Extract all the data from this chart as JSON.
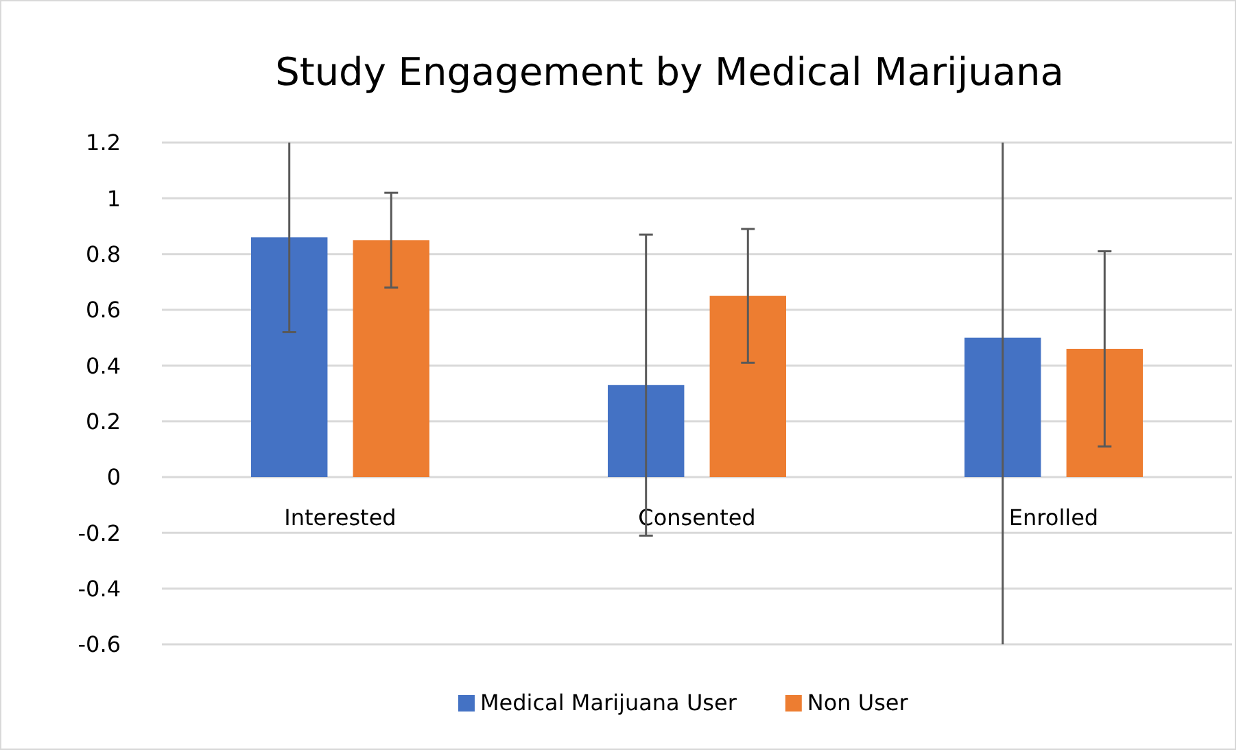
{
  "chart_data": {
    "type": "bar",
    "title": "Study Engagement by Medical Marijuana",
    "categories": [
      "Interested",
      "Consented",
      "Enrolled"
    ],
    "series": [
      {
        "name": "Medical Marijuana User",
        "color": "#4472c4",
        "values": [
          0.86,
          0.33,
          0.5
        ],
        "errors": [
          [
            0.52,
            1.2
          ],
          [
            -0.21,
            0.87
          ],
          [
            -0.6,
            1.2
          ]
        ]
      },
      {
        "name": "Non User",
        "color": "#ed7d31",
        "values": [
          0.85,
          0.65,
          0.46
        ],
        "errors": [
          [
            0.68,
            1.02
          ],
          [
            0.41,
            0.89
          ],
          [
            0.11,
            0.81
          ]
        ]
      }
    ],
    "ylim": [
      -0.6,
      1.2
    ],
    "yticks": [
      -0.6,
      -0.4,
      -0.2,
      0,
      0.2,
      0.4,
      0.6,
      0.8,
      1,
      1.2
    ],
    "grid": "y",
    "legend": "bottom"
  }
}
